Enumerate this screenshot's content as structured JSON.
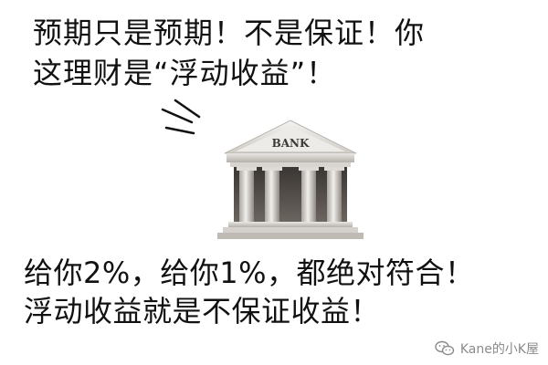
{
  "caption": {
    "top_line_1": "预期只是预期！不是保证！你",
    "top_line_2": "这理财是“浮动收益”！",
    "bottom_line_1": "给你2%，给你1%，都绝对符合！",
    "bottom_line_2": "浮动收益就是不保证收益！"
  },
  "illustration": {
    "bank_label": "BANK",
    "icon": "bank-building-icon"
  },
  "watermark": {
    "text": "Kane的小K屋",
    "icon": "wechat-icon"
  },
  "colors": {
    "background": "#ffffff",
    "text": "#111111",
    "bank_light": "#e8e6e3",
    "bank_dark": "#6e6a66",
    "watermark": "#8a8a8a"
  }
}
